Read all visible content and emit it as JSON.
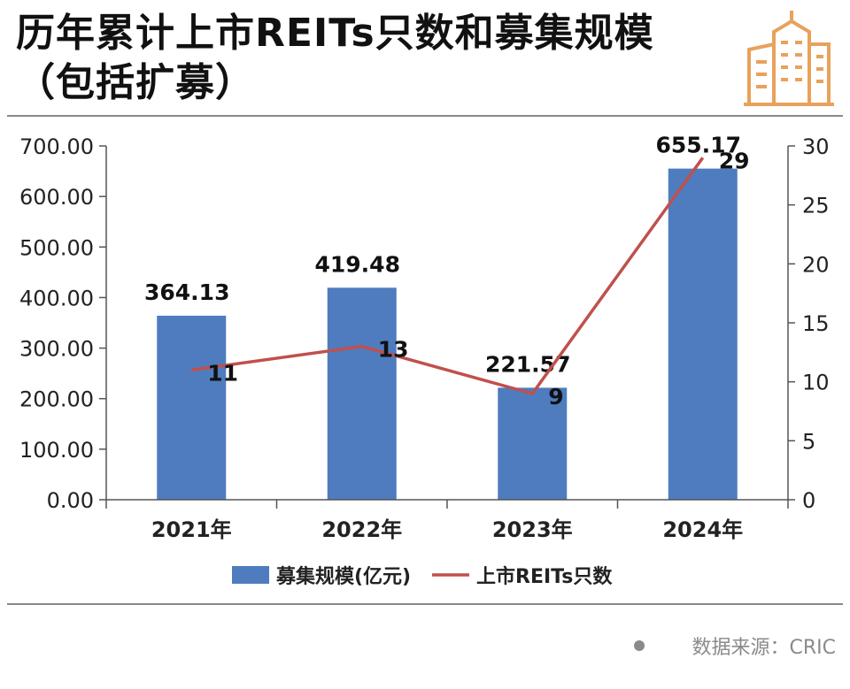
{
  "title": "历年累计上市REITs只数和募集规模（包括扩募）",
  "source": "数据来源：CRIC",
  "colors": {
    "bar": "#4e7cbf",
    "line": "#c0504d",
    "logo": "#e8a25a"
  },
  "chart_data": {
    "type": "bar+line",
    "categories": [
      "2021年",
      "2022年",
      "2023年",
      "2024年"
    ],
    "series": [
      {
        "name": "募集规模(亿元)",
        "type": "bar",
        "axis": "left",
        "values": [
          364.13,
          419.48,
          221.57,
          655.17
        ],
        "labels": [
          "364.13",
          "419.48",
          "221.57",
          "655.17"
        ]
      },
      {
        "name": "上市REITs只数",
        "type": "line",
        "axis": "right",
        "values": [
          11,
          13,
          9,
          29
        ],
        "labels": [
          "11",
          "13",
          "9",
          "29"
        ]
      }
    ],
    "y_left": {
      "min": 0,
      "max": 700,
      "ticks": [
        "0.00",
        "100.00",
        "200.00",
        "300.00",
        "400.00",
        "500.00",
        "600.00",
        "700.00"
      ]
    },
    "y_right": {
      "min": 0,
      "max": 30,
      "ticks": [
        "0",
        "5",
        "10",
        "15",
        "20",
        "25",
        "30"
      ]
    },
    "legend": "bottom-center",
    "grid": false
  }
}
